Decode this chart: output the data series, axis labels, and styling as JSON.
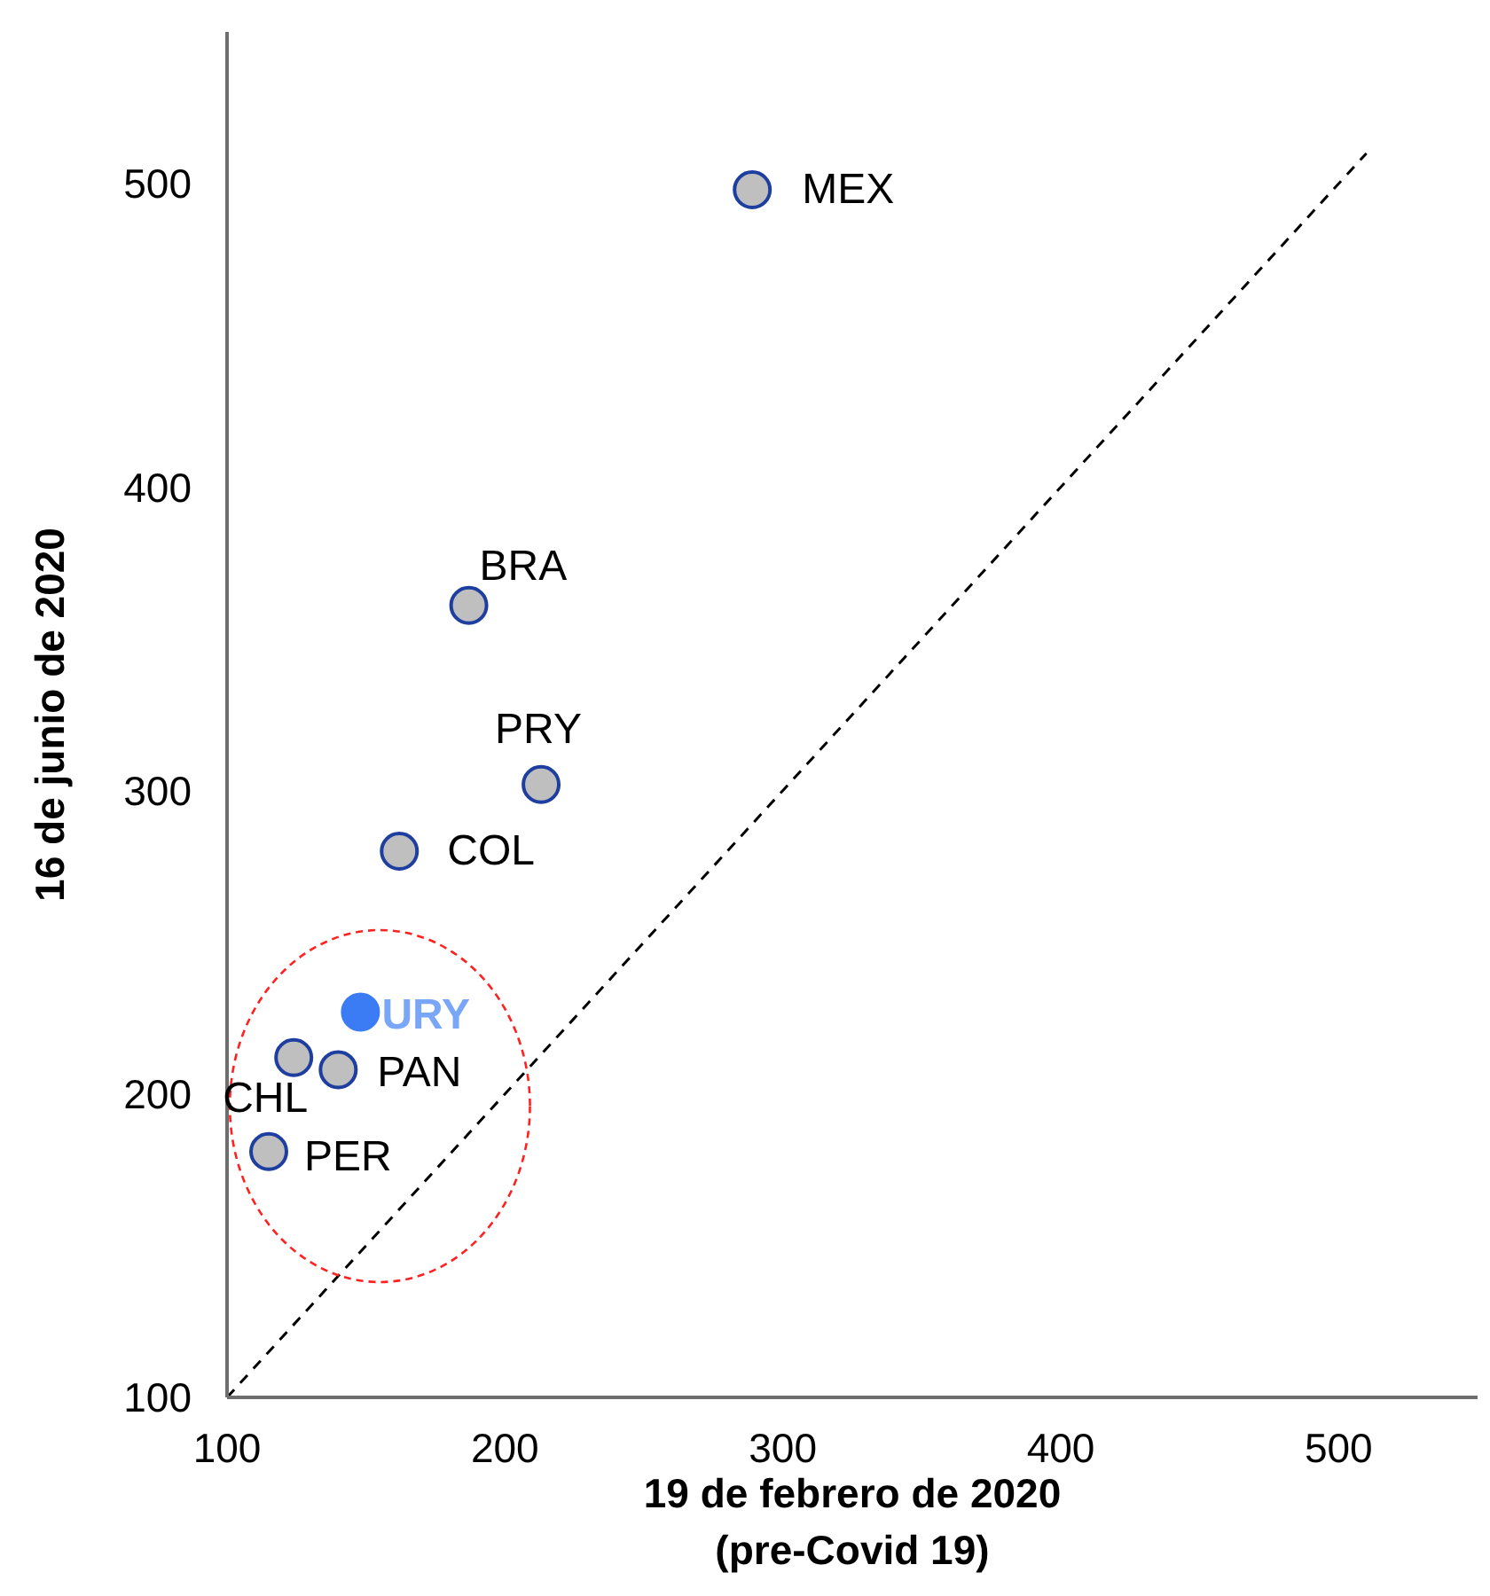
{
  "chart_data": {
    "type": "scatter",
    "xlabel": "19 de febrero de 2020\n(pre-Covid 19)",
    "ylabel": "16 de junio de 2020",
    "xlim": [
      100,
      550
    ],
    "xticks": [
      100,
      200,
      300,
      400,
      500
    ],
    "ylim": [
      100,
      550
    ],
    "yticks": [
      100,
      200,
      300,
      400,
      500
    ],
    "marker": "circle",
    "series": [
      {
        "x": [
          289,
          187,
          213,
          162,
          148,
          124,
          140,
          115
        ],
        "values": [
          498,
          361,
          302,
          280,
          227,
          212,
          208,
          181
        ],
        "colors": [
          "#bfbfbf",
          "#bfbfbf",
          "#bfbfbf",
          "#bfbfbf",
          "#3b7cf5",
          "#bfbfbf",
          "#bfbfbf",
          "#bfbfbf"
        ]
      },
      {
        "type": "line",
        "x": [
          100,
          510
        ],
        "values": [
          100,
          510
        ],
        "color": "#000000",
        "line_style": "dashed",
        "marker": "none"
      }
    ],
    "annotations": [
      {
        "text": "MEX",
        "x": 289,
        "y": 498
      },
      {
        "text": "BRA",
        "x": 187,
        "y": 361
      },
      {
        "text": "PRY",
        "x": 213,
        "y": 302
      },
      {
        "text": "COL",
        "x": 162,
        "y": 280
      },
      {
        "text": "URY",
        "x": 148,
        "y": 227
      },
      {
        "text": "CHL",
        "x": 124,
        "y": 212
      },
      {
        "text": "PAN",
        "x": 140,
        "y": 208
      },
      {
        "text": "PER",
        "x": 115,
        "y": 181
      }
    ]
  }
}
